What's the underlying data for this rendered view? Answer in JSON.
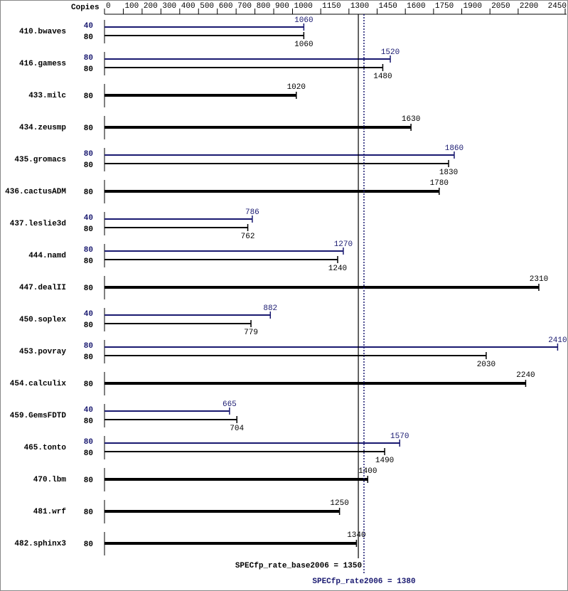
{
  "chart_data": {
    "type": "bar",
    "orientation": "horizontal",
    "copies_label": "Copies",
    "categories": [
      "410.bwaves",
      "416.gamess",
      "433.milc",
      "434.zeusmp",
      "435.gromacs",
      "436.cactusADM",
      "437.leslie3d",
      "444.namd",
      "447.dealII",
      "450.soplex",
      "453.povray",
      "454.calculix",
      "459.GemsFDTD",
      "465.tonto",
      "470.lbm",
      "481.wrf",
      "482.sphinx3"
    ],
    "series": [
      {
        "color": "#191970",
        "copies": [
          40,
          80,
          null,
          null,
          80,
          null,
          40,
          80,
          null,
          40,
          80,
          null,
          40,
          80,
          null,
          null,
          null
        ],
        "values": [
          1060,
          1520,
          null,
          null,
          1860,
          null,
          786,
          1270,
          null,
          882,
          2410,
          null,
          665,
          1570,
          null,
          null,
          null
        ]
      },
      {
        "color": "#000000",
        "copies": [
          80,
          80,
          80,
          80,
          80,
          80,
          80,
          80,
          80,
          80,
          80,
          80,
          80,
          80,
          80,
          80,
          80
        ],
        "values": [
          1060,
          1480,
          1020,
          1630,
          1830,
          1780,
          762,
          1240,
          2310,
          779,
          2030,
          2240,
          704,
          1490,
          1400,
          1250,
          1340
        ]
      }
    ],
    "xlim": [
      0,
      2450
    ],
    "xticks": [
      0,
      100,
      200,
      300,
      400,
      500,
      600,
      700,
      800,
      900,
      1000,
      1150,
      1300,
      1450,
      1600,
      1750,
      1900,
      2050,
      2200,
      2450
    ],
    "reference_lines": [
      {
        "label": "SPECfp_rate_base2006 = 1350",
        "value": 1350,
        "color": "#000000",
        "style": "solid"
      },
      {
        "label": "SPECfp_rate2006 = 1380",
        "value": 1380,
        "color": "#191970",
        "style": "dotted"
      }
    ]
  }
}
